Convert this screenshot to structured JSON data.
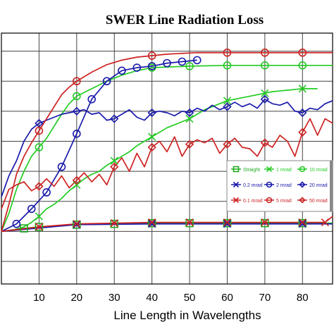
{
  "chart_data": {
    "type": "line",
    "title": "SWER Line Radiation Loss",
    "xlabel": "Line Length in Wavelengths",
    "ylabel": "",
    "xlim": [
      0,
      88
    ],
    "ylim": [
      -3.5,
      13.2
    ],
    "x_ticks": [
      10,
      20,
      30,
      40,
      50,
      60,
      70,
      80
    ],
    "grid": true,
    "legend_position": "right",
    "series": [
      {
        "name": "Straight",
        "color": "#22aa22",
        "marker": "square",
        "x": [
          0,
          6,
          10,
          20,
          30,
          40,
          50,
          60,
          70,
          80,
          88
        ],
        "y": [
          0,
          0.2,
          0.3,
          0.45,
          0.5,
          0.55,
          0.55,
          0.55,
          0.55,
          0.55,
          0.55
        ]
      },
      {
        "name": "1 mrad",
        "color": "#22cc22",
        "marker": "x",
        "x": [
          0,
          2,
          4,
          6,
          8,
          10,
          12,
          14,
          16,
          18,
          20,
          22,
          24,
          26,
          28,
          30,
          32,
          34,
          36,
          38,
          40,
          42,
          44,
          46,
          48,
          50,
          52,
          54,
          56,
          58,
          60,
          62,
          64,
          66,
          68,
          70,
          72,
          74,
          76,
          78,
          80,
          82,
          84
        ],
        "y": [
          0,
          0.05,
          0.15,
          0.3,
          0.6,
          1.0,
          1.5,
          1.8,
          2.2,
          2.7,
          3.1,
          3.5,
          3.8,
          4.0,
          4.4,
          4.7,
          5.0,
          5.3,
          5.7,
          6.0,
          6.3,
          6.6,
          6.9,
          7.1,
          7.3,
          7.5,
          7.8,
          8.1,
          8.3,
          8.5,
          8.7,
          8.8,
          8.9,
          9.0,
          9.1,
          9.2,
          9.3,
          9.35,
          9.4,
          9.45,
          9.5,
          9.5,
          9.5
        ]
      },
      {
        "name": "10 mrad",
        "color": "#22cc22",
        "marker": "circle",
        "x": [
          0,
          2,
          4,
          6,
          8,
          10,
          12,
          14,
          16,
          18,
          20,
          24,
          28,
          32,
          36,
          40,
          50,
          60,
          70,
          80,
          88
        ],
        "y": [
          0,
          1.2,
          2.8,
          4.0,
          5.0,
          5.6,
          6.2,
          7.0,
          7.8,
          8.5,
          9.0,
          9.5,
          10.0,
          10.4,
          10.7,
          10.9,
          11.0,
          11.05,
          11.05,
          11.05,
          11.05
        ]
      },
      {
        "name": "0.2 mrad",
        "color": "#1a1aaa",
        "marker": "x",
        "x": [
          0,
          20,
          40,
          60,
          80,
          88
        ],
        "y": [
          0,
          0.45,
          0.5,
          0.5,
          0.5,
          0.5
        ]
      },
      {
        "name": "2 mrad",
        "color": "#1a1aaa",
        "marker": "circle",
        "x": [
          0,
          4,
          8,
          12,
          16,
          20,
          24,
          28,
          32,
          36,
          40,
          44,
          48,
          52
        ],
        "y": [
          0,
          0.5,
          1.5,
          2.6,
          4.3,
          6.5,
          8.8,
          10.0,
          10.7,
          10.9,
          11.0,
          11.2,
          11.3,
          11.4
        ]
      },
      {
        "name": "20 mrad",
        "color": "#1a1aaa",
        "marker": "diamond",
        "x": [
          0,
          2,
          4,
          6,
          8,
          10,
          12,
          14,
          16,
          18,
          20,
          22,
          24,
          26,
          28,
          30,
          32,
          34,
          36,
          38,
          40,
          42,
          44,
          46,
          48,
          50,
          52,
          54,
          56,
          58,
          60,
          62,
          64,
          66,
          68,
          70,
          72,
          74,
          76,
          78,
          80,
          82,
          84,
          86,
          88
        ],
        "y": [
          2.3,
          3.7,
          4.7,
          6.0,
          6.8,
          7.2,
          7.4,
          7.6,
          7.8,
          7.9,
          8.0,
          8.1,
          7.8,
          7.9,
          7.4,
          7.5,
          7.8,
          8.1,
          7.6,
          7.4,
          7.9,
          8.0,
          7.9,
          7.7,
          8.0,
          7.9,
          8.2,
          8.0,
          8.4,
          8.1,
          8.3,
          8.6,
          8.3,
          8.5,
          8.2,
          8.8,
          8.5,
          8.4,
          8.6,
          8.0,
          7.9,
          8.2,
          8.1,
          8.5,
          8.7
        ]
      },
      {
        "name": "0.1 mrad",
        "color": "#cc2222",
        "marker": "x",
        "x": [
          0,
          10,
          20,
          30,
          40,
          50,
          60,
          70,
          80,
          86,
          88
        ],
        "y": [
          0,
          0.3,
          0.5,
          0.55,
          0.6,
          0.6,
          0.6,
          0.6,
          0.6,
          0.6,
          1.0
        ]
      },
      {
        "name": "5 mrad",
        "color": "#cc2222",
        "marker": "circle",
        "x": [
          0,
          2,
          4,
          6,
          8,
          10,
          12,
          14,
          16,
          18,
          20,
          24,
          28,
          32,
          36,
          40,
          44,
          48,
          52,
          60,
          70,
          80,
          88
        ],
        "y": [
          0,
          1.8,
          3.8,
          5.0,
          5.9,
          6.7,
          7.5,
          8.3,
          9.1,
          9.6,
          10.0,
          10.6,
          11.1,
          11.4,
          11.6,
          11.7,
          11.8,
          11.85,
          11.9,
          11.9,
          11.9,
          11.9,
          11.9
        ]
      },
      {
        "name": "50 mrad",
        "color": "#cc2222",
        "marker": "diamond",
        "x": [
          0,
          2,
          4,
          6,
          8,
          10,
          12,
          14,
          16,
          18,
          20,
          22,
          24,
          26,
          28,
          30,
          32,
          34,
          36,
          38,
          40,
          42,
          44,
          46,
          48,
          50,
          52,
          54,
          56,
          58,
          60,
          62,
          64,
          66,
          68,
          70,
          72,
          74,
          76,
          78,
          80,
          82,
          84,
          86,
          88
        ],
        "y": [
          1.5,
          2.8,
          3.1,
          3.3,
          2.7,
          3.0,
          3.5,
          3.0,
          3.7,
          2.9,
          3.4,
          3.9,
          3.3,
          3.8,
          3.1,
          4.3,
          4.9,
          4.0,
          5.2,
          4.3,
          5.6,
          6.0,
          5.3,
          6.3,
          5.0,
          5.8,
          6.1,
          5.9,
          6.2,
          5.2,
          5.8,
          6.2,
          5.6,
          5.5,
          5.0,
          5.9,
          5.6,
          6.4,
          6.0,
          5.0,
          6.6,
          7.5,
          6.4,
          7.5,
          7.2
        ]
      }
    ]
  }
}
